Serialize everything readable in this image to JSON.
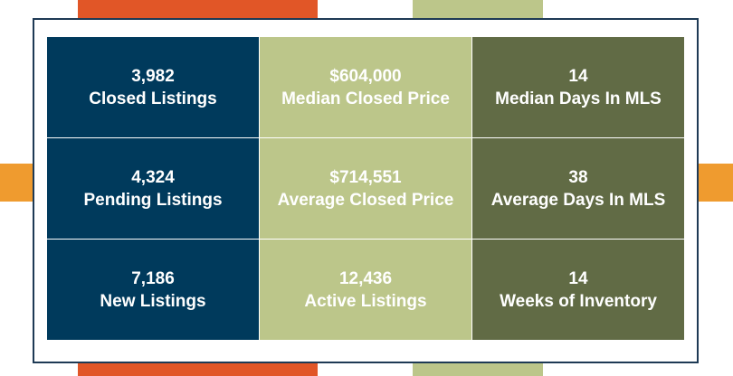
{
  "colors": {
    "navy": "#003a5c",
    "lime": "#bcc68a",
    "olive": "#616b45",
    "orange_accent": "#e15627",
    "gold_accent": "#ef9b2f",
    "frame_border": "#1e3a55"
  },
  "stats": [
    {
      "value": "3,982",
      "label": "Closed Listings"
    },
    {
      "value": "$604,000",
      "label": "Median Closed Price"
    },
    {
      "value": "14",
      "label": "Median Days In MLS"
    },
    {
      "value": "4,324",
      "label": "Pending Listings"
    },
    {
      "value": "$714,551",
      "label": "Average Closed Price"
    },
    {
      "value": "38",
      "label": "Average Days In MLS"
    },
    {
      "value": "7,186",
      "label": "New Listings"
    },
    {
      "value": "12,436",
      "label": "Active Listings"
    },
    {
      "value": "14",
      "label": "Weeks of Inventory"
    }
  ]
}
